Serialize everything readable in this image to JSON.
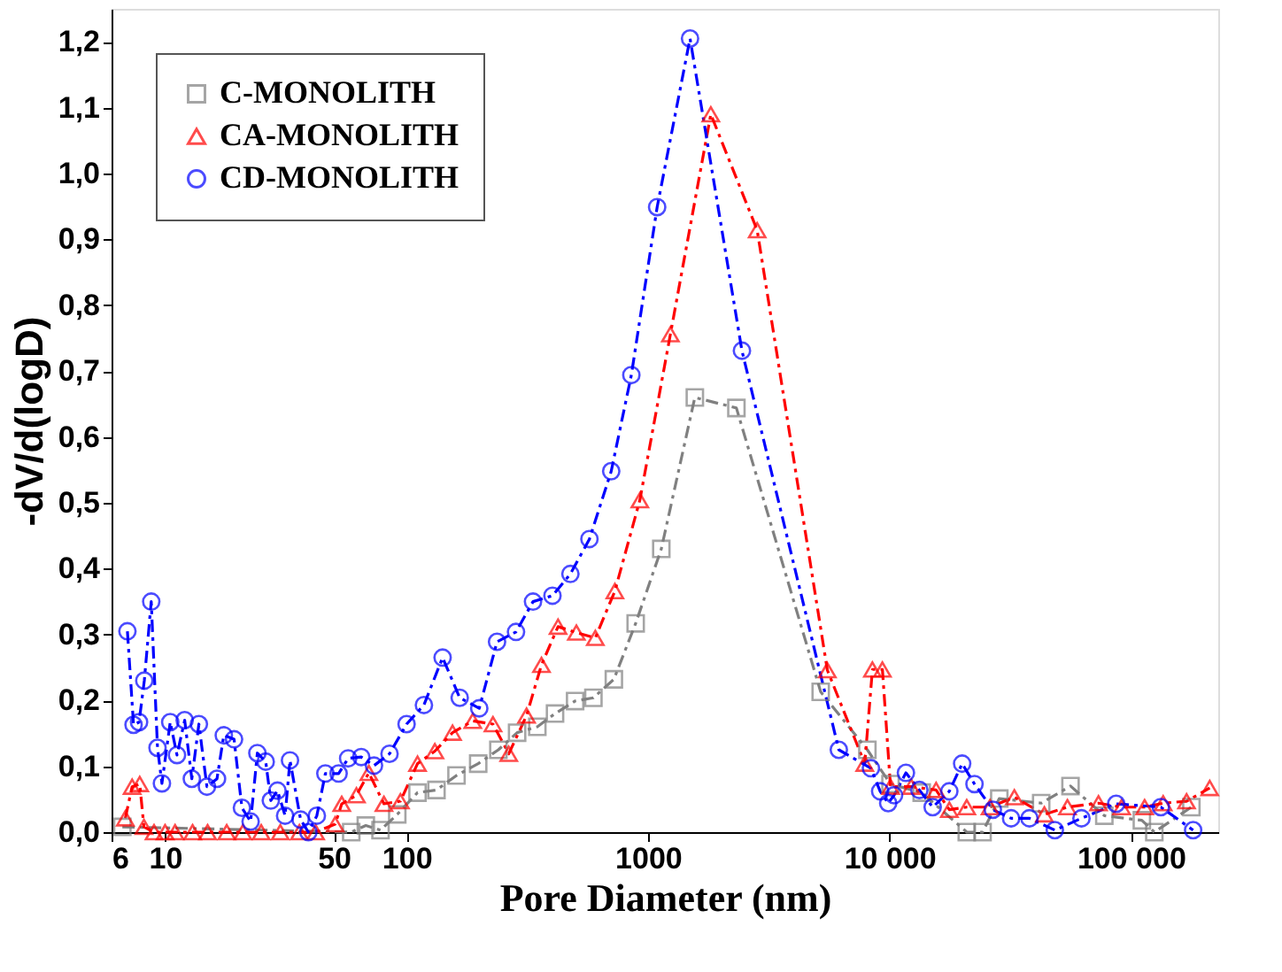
{
  "chart_data": {
    "type": "line",
    "xlabel": "Pore Diameter (nm)",
    "ylabel": "-dV/d(logD)",
    "log": "x",
    "xlim": [
      6,
      230000
    ],
    "ylim": [
      0,
      1.25
    ],
    "xticks": [
      6,
      10,
      50,
      100,
      {
        "value": 1000,
        "label": "1000"
      },
      {
        "value": 10000,
        "label": "10 000"
      },
      {
        "value": 100000,
        "label": "100 000"
      }
    ],
    "yticks": [
      {
        "value": 0,
        "label": "0,0"
      },
      {
        "value": 0.1,
        "label": "0,1"
      },
      {
        "value": 0.2,
        "label": "0,2"
      },
      {
        "value": 0.3,
        "label": "0,3"
      },
      {
        "value": 0.4,
        "label": "0,4"
      },
      {
        "value": 0.5,
        "label": "0,5"
      },
      {
        "value": 0.6,
        "label": "0,6"
      },
      {
        "value": 0.7,
        "label": "0,7"
      },
      {
        "value": 0.8,
        "label": "0,8"
      },
      {
        "value": 0.9,
        "label": "0,9"
      },
      {
        "value": 1.0,
        "label": "1,0"
      },
      {
        "value": 1.1,
        "label": "1,1"
      },
      {
        "value": 1.2,
        "label": "1,2"
      }
    ],
    "grid": false,
    "legend": "top left",
    "line_style": "dashed",
    "series": [
      {
        "name": "C-MONOLITH",
        "color": "#808080",
        "marker": "square",
        "x": [
          6.65,
          59,
          67.8,
          78,
          91.5,
          111,
          133,
          161,
          198,
          240,
          287,
          348,
          412,
          499,
          594,
          722,
          889,
          1135,
          1563,
          2323,
          5190,
          8100,
          10100,
          13600,
          20900,
          24300,
          28500,
          42500,
          56200,
          77600,
          111000,
          125000,
          178000
        ],
        "values": [
          0.008,
          0.0,
          0.01,
          0.003,
          0.027,
          0.06,
          0.064,
          0.086,
          0.104,
          0.125,
          0.151,
          0.16,
          0.18,
          0.199,
          0.204,
          0.232,
          0.317,
          0.43,
          0.66,
          0.644,
          0.213,
          0.125,
          0.073,
          0.06,
          0.0,
          0.0,
          0.051,
          0.044,
          0.07,
          0.025,
          0.018,
          0.0,
          0.038
        ]
      },
      {
        "name": "CA-MONOLITH",
        "color": "#ff0000",
        "marker": "triangle",
        "x": [
          6.84,
          7.3,
          7.85,
          8.17,
          9,
          10,
          11,
          13,
          15,
          18,
          21,
          25,
          30,
          36,
          42,
          50.6,
          53.9,
          62,
          69.8,
          80.6,
          94.3,
          111,
          131,
          155,
          188,
          228,
          265,
          314,
          362,
          424,
          505,
          605,
          729,
          925,
          1238,
          1820,
          2832,
          5530,
          7900,
          8500,
          9350,
          10100,
          12300,
          15600,
          17700,
          20900,
          26100,
          32900,
          43800,
          54600,
          73400,
          91500,
          114000,
          136000,
          170000,
          212000
        ],
        "values": [
          0.021,
          0.069,
          0.073,
          0.008,
          0.0,
          0.0,
          0.0,
          0.0,
          0.0,
          0.0,
          0.0,
          0.0,
          0.0,
          0.0,
          0.0,
          0.012,
          0.043,
          0.056,
          0.09,
          0.043,
          0.047,
          0.104,
          0.123,
          0.151,
          0.169,
          0.164,
          0.119,
          0.177,
          0.254,
          0.312,
          0.303,
          0.295,
          0.366,
          0.504,
          0.756,
          1.09,
          0.914,
          0.246,
          0.104,
          0.247,
          0.247,
          0.069,
          0.069,
          0.064,
          0.034,
          0.038,
          0.038,
          0.053,
          0.027,
          0.038,
          0.044,
          0.038,
          0.038,
          0.044,
          0.047,
          0.067
        ]
      },
      {
        "name": "CD-MONOLITH",
        "color": "#0000ff",
        "marker": "circle",
        "x": [
          6.98,
          7.4,
          7.8,
          8.2,
          8.76,
          9.3,
          9.7,
          10.5,
          11.2,
          12.05,
          12.9,
          13.8,
          14.9,
          16.4,
          17.5,
          19.3,
          20.8,
          22.6,
          24.1,
          26.1,
          27.4,
          29.2,
          31.4,
          32.9,
          36.4,
          39.2,
          42.5,
          46.1,
          52.3,
          57.3,
          64.9,
          73.3,
          85,
          100,
          118,
          141,
          166,
          200,
          237,
          284,
          334,
          402,
          477,
          572,
          704,
          853,
          1091,
          1493,
          2449,
          6170,
          8380,
          9150,
          9880,
          10450,
          11700,
          13300,
          15100,
          17700,
          20000,
          22500,
          26800,
          31900,
          38000,
          48400,
          62400,
          86900,
          133000,
          181000
        ],
        "values": [
          0.305,
          0.163,
          0.167,
          0.23,
          0.35,
          0.128,
          0.074,
          0.167,
          0.117,
          0.17,
          0.081,
          0.164,
          0.069,
          0.081,
          0.147,
          0.141,
          0.037,
          0.016,
          0.12,
          0.107,
          0.048,
          0.063,
          0.025,
          0.109,
          0.019,
          0.0,
          0.025,
          0.089,
          0.089,
          0.112,
          0.114,
          0.101,
          0.119,
          0.164,
          0.193,
          0.265,
          0.204,
          0.188,
          0.289,
          0.304,
          0.35,
          0.359,
          0.392,
          0.445,
          0.548,
          0.694,
          0.949,
          1.205,
          0.731,
          0.125,
          0.097,
          0.062,
          0.044,
          0.056,
          0.09,
          0.064,
          0.038,
          0.062,
          0.104,
          0.073,
          0.034,
          0.021,
          0.021,
          0.003,
          0.021,
          0.043,
          0.038,
          0.003
        ]
      }
    ]
  }
}
